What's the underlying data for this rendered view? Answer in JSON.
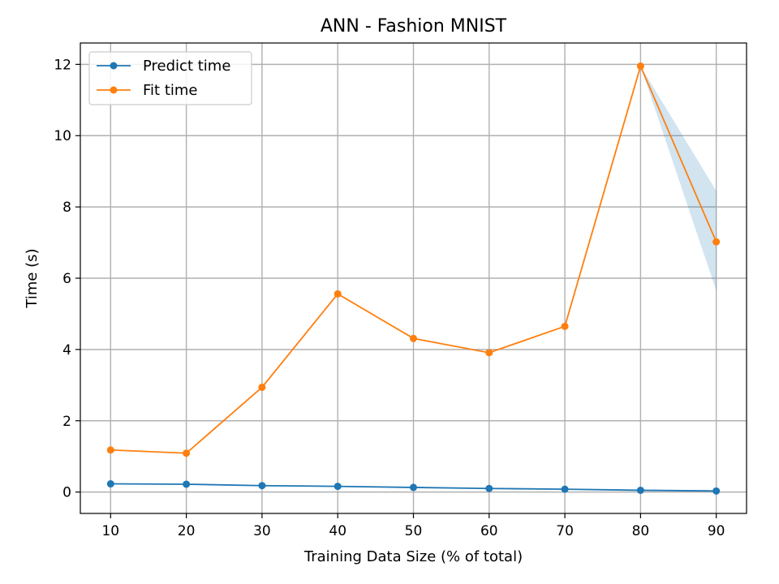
{
  "chart_data": {
    "type": "line",
    "title": "ANN - Fashion MNIST",
    "xlabel": "Training Data Size (% of total)",
    "ylabel": "Time (s)",
    "x": [
      10,
      20,
      30,
      40,
      50,
      60,
      70,
      80,
      90
    ],
    "xlim": [
      6,
      94
    ],
    "ylim": [
      -0.6,
      12.6
    ],
    "xticks": [
      10,
      20,
      30,
      40,
      50,
      60,
      70,
      80,
      90
    ],
    "yticks": [
      0,
      2,
      4,
      6,
      8,
      10,
      12
    ],
    "grid": true,
    "legend_position": "top-left",
    "series": [
      {
        "name": "Predict time",
        "color": "#1f77b4",
        "values": [
          0.23,
          0.22,
          0.18,
          0.16,
          0.13,
          0.1,
          0.08,
          0.05,
          0.03
        ]
      },
      {
        "name": "Fit time",
        "color": "#ff7f0e",
        "values": [
          1.18,
          1.09,
          2.94,
          5.56,
          4.31,
          3.91,
          4.65,
          11.95,
          7.02
        ],
        "band": {
          "color": "#1f77b4",
          "opacity": 0.2,
          "lower": [
            1.18,
            1.09,
            2.94,
            5.56,
            4.31,
            3.91,
            4.65,
            11.95,
            5.65
          ],
          "upper": [
            1.18,
            1.09,
            2.94,
            5.56,
            4.31,
            3.91,
            4.65,
            11.95,
            8.45
          ]
        }
      }
    ]
  }
}
